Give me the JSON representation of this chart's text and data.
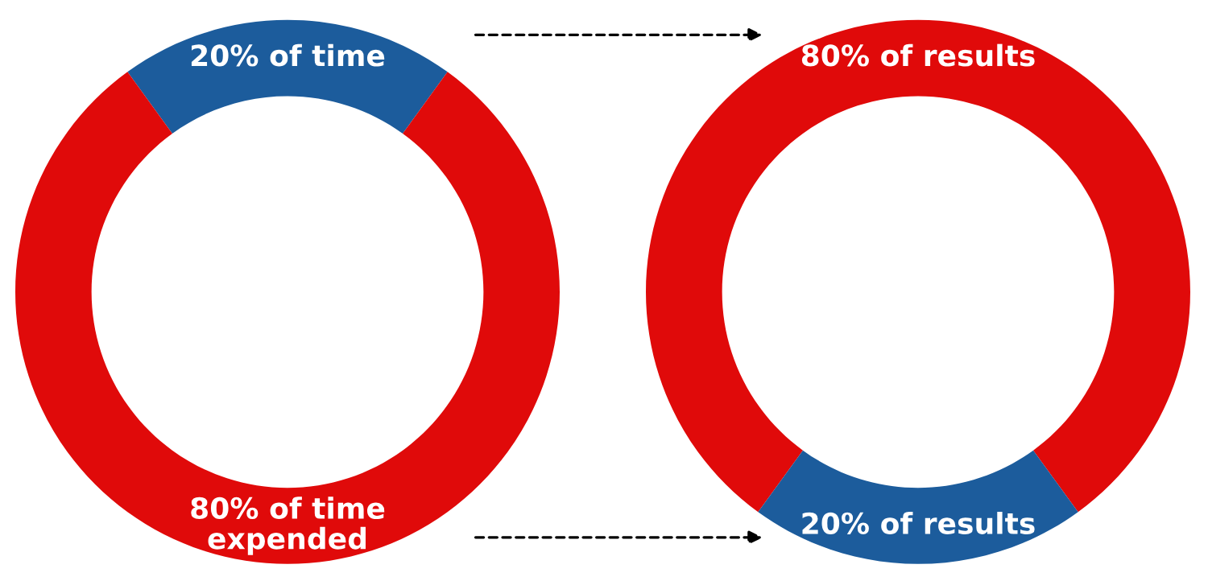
{
  "chart_data": [
    {
      "type": "donut",
      "categories": [
        "20% of time",
        "80% of time\nexpended"
      ],
      "values": [
        20,
        80
      ],
      "colors": [
        "#1c5c9c",
        "#e00a0a"
      ]
    },
    {
      "type": "donut",
      "categories": [
        "80% of results",
        "20% of results"
      ],
      "values": [
        80,
        20
      ],
      "colors": [
        "#e00a0a",
        "#1c5c9c"
      ]
    }
  ]
}
